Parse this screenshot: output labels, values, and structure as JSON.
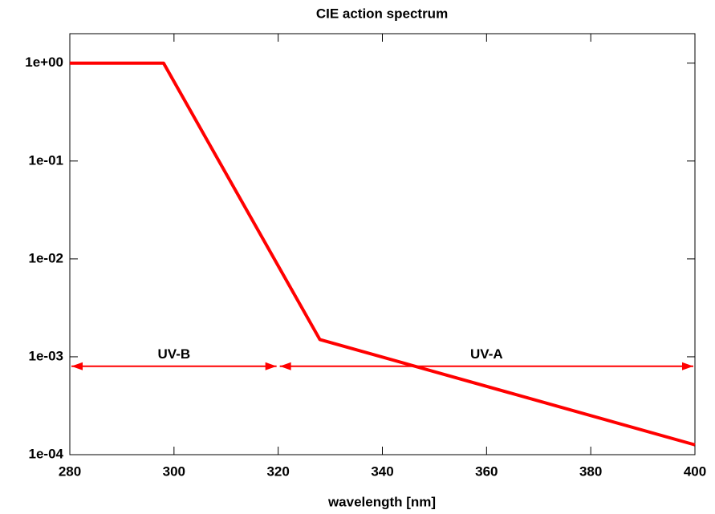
{
  "chart_data": {
    "type": "line",
    "title": "CIE action spectrum",
    "x_label": "wavelength [nm]",
    "log_y": true,
    "xlim": [
      280,
      400
    ],
    "xticks": [
      280,
      300,
      320,
      340,
      360,
      380,
      400
    ],
    "ylim": [
      0.0001,
      2
    ],
    "yticks": [
      {
        "value": 0.0001,
        "label": "1e-04"
      },
      {
        "value": 0.001,
        "label": "1e-03"
      },
      {
        "value": 0.01,
        "label": "1e-02"
      },
      {
        "value": 0.1,
        "label": "1e-01"
      },
      {
        "value": 1,
        "label": "1e+00"
      }
    ],
    "series": [
      {
        "color": "#ff0000",
        "x": [
          280,
          298,
          328,
          400
        ],
        "values": [
          1,
          1,
          0.0015,
          0.000126
        ]
      }
    ],
    "annotations": [
      {
        "text": "UV-B",
        "x": [
          280,
          320
        ],
        "y": 0.0008,
        "color": "#ff0000"
      },
      {
        "text": "UV-A",
        "x": [
          320,
          400
        ],
        "y": 0.0008,
        "color": "#ff0000"
      }
    ]
  }
}
